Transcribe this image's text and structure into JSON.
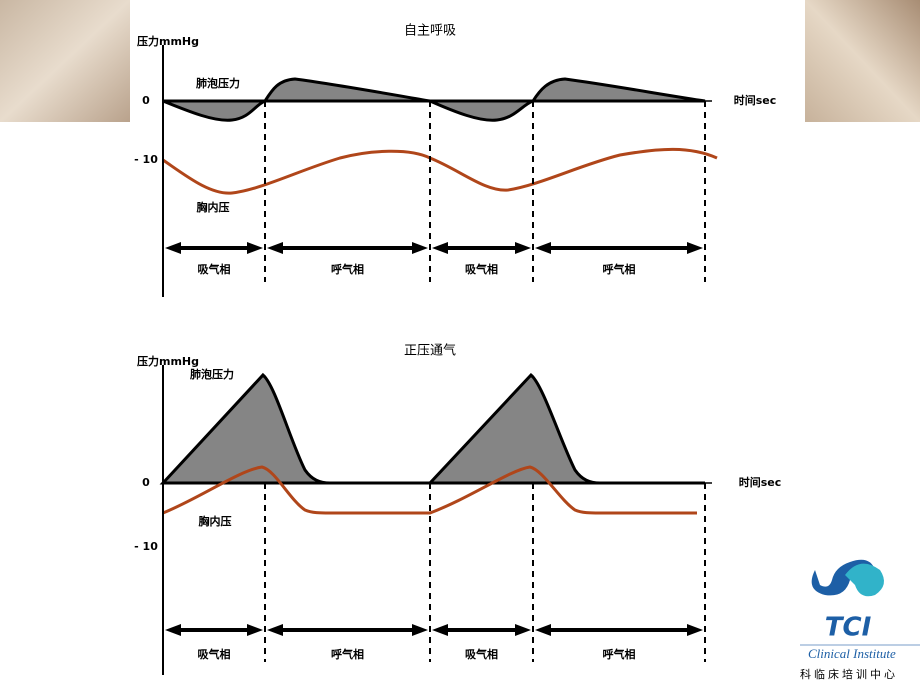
{
  "panels": [
    {
      "title": "自主呼吸",
      "y_axis_label": "压力mmHg",
      "zero_label": "0",
      "minus_label": "- 10",
      "x_axis_label": "时间sec",
      "alveolar_label": "肺泡压力",
      "pleural_label": "胸内压",
      "phases": [
        "吸气相",
        "呼气相",
        "吸气相",
        "呼气相"
      ]
    },
    {
      "title": "正压通气",
      "y_axis_label": "压力mmHg",
      "zero_label": "0",
      "minus_label": "- 10",
      "x_axis_label": "时间sec",
      "alveolar_label": "肺泡压力",
      "pleural_label": "胸内压",
      "phases": [
        "吸气相",
        "呼气相",
        "吸气相",
        "呼气相"
      ]
    }
  ],
  "logo": {
    "mark": "TCI",
    "name": "Clinical Institute",
    "name_cn": "科临床培训中心"
  }
}
